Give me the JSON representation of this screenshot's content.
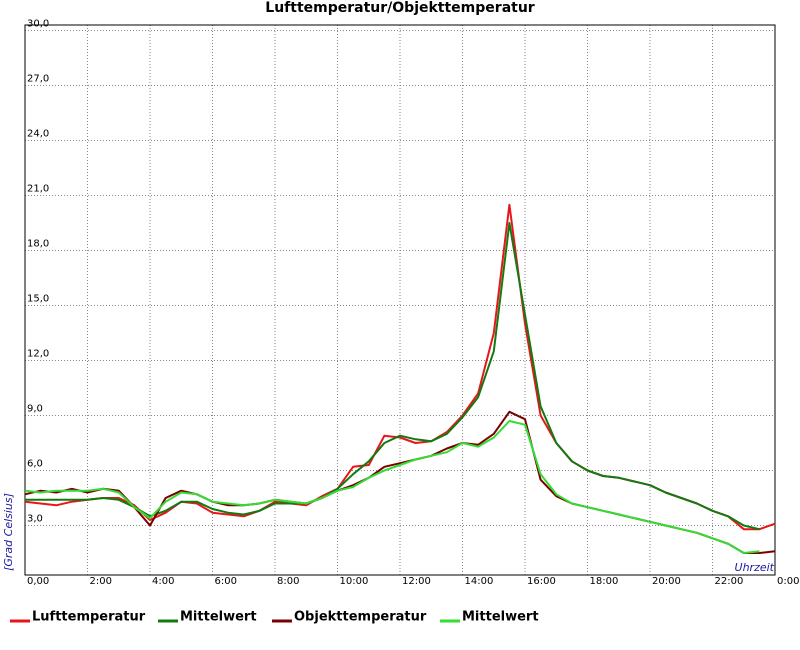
{
  "chart_data": {
    "type": "line",
    "title": "Lufttemperatur/Objekttemperatur",
    "ylabel": "[Grad Celsius]",
    "xlabel": "Uhrzeit",
    "x": [
      0,
      0.5,
      1,
      1.5,
      2,
      2.5,
      3,
      3.5,
      4,
      4.5,
      5,
      5.5,
      6,
      6.5,
      7,
      7.5,
      8,
      8.5,
      9,
      9.5,
      10,
      10.5,
      11,
      11.5,
      12,
      12.5,
      13,
      13.5,
      14,
      14.5,
      15,
      15.5,
      16,
      16.5,
      17,
      17.5,
      18,
      18.5,
      19,
      19.5,
      20,
      20.5,
      21,
      21.5,
      22,
      22.5,
      23,
      23.5,
      24
    ],
    "xlim": [
      0,
      24
    ],
    "xticks": [
      {
        "value": 0,
        "label": "0,00"
      },
      {
        "value": 2,
        "label": "2:00"
      },
      {
        "value": 4,
        "label": "4:00"
      },
      {
        "value": 6,
        "label": "6:00"
      },
      {
        "value": 8,
        "label": "8:00"
      },
      {
        "value": 10,
        "label": "10:00"
      },
      {
        "value": 12,
        "label": "12:00"
      },
      {
        "value": 14,
        "label": "14:00"
      },
      {
        "value": 16,
        "label": "16:00"
      },
      {
        "value": 18,
        "label": "18:00"
      },
      {
        "value": 20,
        "label": "20:00"
      },
      {
        "value": 22,
        "label": "22:00"
      },
      {
        "value": 24,
        "label": "0:00"
      }
    ],
    "ylim": [
      0.3,
      30.3
    ],
    "yticks": [
      {
        "value": 3,
        "label": "3,0"
      },
      {
        "value": 6,
        "label": "6,0"
      },
      {
        "value": 9,
        "label": "9,0"
      },
      {
        "value": 12,
        "label": "12,0"
      },
      {
        "value": 15,
        "label": "15,0"
      },
      {
        "value": 18,
        "label": "18,0"
      },
      {
        "value": 21,
        "label": "21,0"
      },
      {
        "value": 24,
        "label": "24,0"
      },
      {
        "value": 27,
        "label": "27,0"
      },
      {
        "value": 30,
        "label": "30,0"
      }
    ],
    "grid": true,
    "legend": "bottom",
    "series": [
      {
        "name": "Lufttemperatur",
        "color": "#e8161b",
        "values": [
          4.3,
          4.2,
          4.1,
          4.3,
          4.4,
          4.5,
          4.5,
          4.1,
          3.3,
          3.7,
          4.3,
          4.2,
          3.7,
          3.6,
          3.5,
          3.8,
          4.3,
          4.2,
          4.1,
          4.6,
          5.0,
          6.2,
          6.3,
          7.9,
          7.8,
          7.5,
          7.6,
          8.1,
          9.0,
          10.2,
          13.5,
          20.5,
          14.0,
          9.0,
          7.5,
          6.5,
          6.0,
          5.7,
          5.6,
          5.4,
          5.2,
          4.8,
          4.5,
          4.2,
          3.8,
          3.5,
          2.8,
          2.8,
          3.1
        ]
      },
      {
        "name": "Mittelwert",
        "color": "#117a11",
        "values": [
          4.4,
          4.4,
          4.4,
          4.4,
          4.4,
          4.5,
          4.4,
          4.0,
          3.5,
          3.8,
          4.3,
          4.3,
          3.9,
          3.7,
          3.6,
          3.8,
          4.2,
          4.2,
          4.2,
          4.5,
          5.0,
          5.8,
          6.5,
          7.5,
          7.9,
          7.7,
          7.6,
          8.0,
          8.9,
          10.0,
          12.5,
          19.5,
          14.5,
          9.5,
          7.5,
          6.5,
          6.0,
          5.7,
          5.6,
          5.4,
          5.2,
          4.8,
          4.5,
          4.2,
          3.8,
          3.5,
          3.0,
          2.8,
          null
        ]
      },
      {
        "name": "Objekttemperatur",
        "color": "#7a0000",
        "values": [
          4.7,
          4.9,
          4.8,
          5.0,
          4.8,
          5.0,
          4.9,
          4.0,
          3.0,
          4.5,
          4.9,
          4.7,
          4.3,
          4.1,
          4.1,
          4.2,
          4.4,
          4.3,
          4.2,
          4.5,
          4.9,
          5.2,
          5.6,
          6.2,
          6.4,
          6.6,
          6.8,
          7.2,
          7.5,
          7.4,
          8.0,
          9.2,
          8.8,
          5.5,
          4.6,
          4.2,
          4.0,
          3.8,
          3.6,
          3.4,
          3.2,
          3.0,
          2.8,
          2.6,
          2.3,
          2.0,
          1.5,
          1.5,
          1.6
        ]
      },
      {
        "name": "Mittelwert",
        "color": "#33dd33",
        "values": [
          4.9,
          4.8,
          4.9,
          4.9,
          4.9,
          5.0,
          4.8,
          4.0,
          3.4,
          4.3,
          4.8,
          4.7,
          4.3,
          4.2,
          4.1,
          4.2,
          4.4,
          4.3,
          4.2,
          4.5,
          4.9,
          5.1,
          5.6,
          6.0,
          6.3,
          6.6,
          6.8,
          7.0,
          7.5,
          7.3,
          7.8,
          8.7,
          8.5,
          5.8,
          4.7,
          4.2,
          4.0,
          3.8,
          3.6,
          3.4,
          3.2,
          3.0,
          2.8,
          2.6,
          2.3,
          2.0,
          1.5,
          1.6,
          null
        ]
      }
    ]
  }
}
